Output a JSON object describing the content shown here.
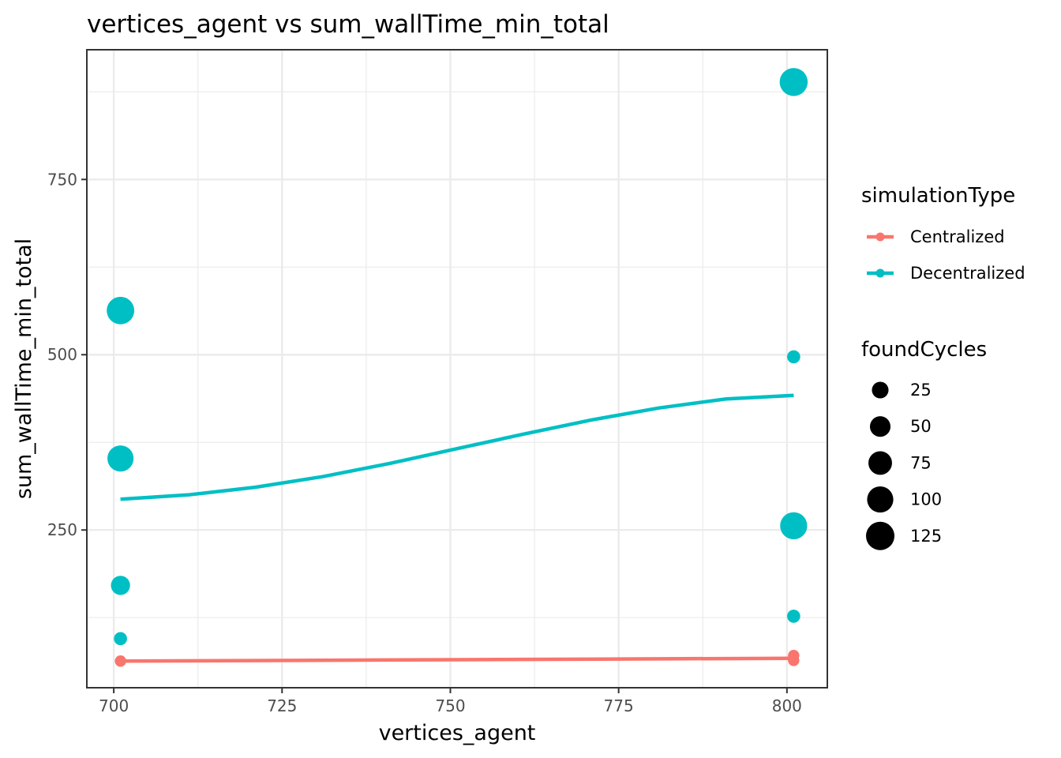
{
  "chart_data": {
    "type": "scatter",
    "title": "vertices_agent  vs  sum_wallTime_min_total",
    "xlabel": "vertices_agent",
    "ylabel": "sum_wallTime_min_total",
    "xlim": [
      696,
      806
    ],
    "ylim": [
      25,
      935
    ],
    "x_ticks": [
      700,
      725,
      750,
      775,
      800
    ],
    "x_tick_labels": [
      "700",
      "725",
      "750",
      "775",
      "800"
    ],
    "y_ticks": [
      250,
      500,
      750
    ],
    "y_tick_labels": [
      "250",
      "500",
      "750"
    ],
    "grid": true,
    "legend_position": "right",
    "color_legend": {
      "title": "simulationType",
      "entries": [
        {
          "label": "Centralized",
          "color": "#F8766D"
        },
        {
          "label": "Decentralized",
          "color": "#00BFC4"
        }
      ]
    },
    "size_legend": {
      "title": "foundCycles",
      "entries": [
        {
          "label": "25",
          "value": 25
        },
        {
          "label": "50",
          "value": 50
        },
        {
          "label": "75",
          "value": 75
        },
        {
          "label": "100",
          "value": 100
        },
        {
          "label": "125",
          "value": 125
        }
      ]
    },
    "series": [
      {
        "name": "Centralized",
        "color": "#F8766D",
        "points": [
          {
            "x": 701,
            "y": 63,
            "size": 5
          },
          {
            "x": 801,
            "y": 71,
            "size": 5
          },
          {
            "x": 801,
            "y": 64,
            "size": 5
          }
        ],
        "smooth": {
          "x": [
            701,
            751,
            801
          ],
          "y": [
            63,
            65,
            67
          ]
        }
      },
      {
        "name": "Decentralized",
        "color": "#00BFC4",
        "points": [
          {
            "x": 701,
            "y": 563,
            "size": 115
          },
          {
            "x": 701,
            "y": 352,
            "size": 100
          },
          {
            "x": 701,
            "y": 171,
            "size": 40
          },
          {
            "x": 701,
            "y": 95,
            "size": 10
          },
          {
            "x": 801,
            "y": 889,
            "size": 120
          },
          {
            "x": 801,
            "y": 497,
            "size": 10
          },
          {
            "x": 801,
            "y": 256,
            "size": 110
          },
          {
            "x": 801,
            "y": 127,
            "size": 10
          }
        ],
        "smooth": {
          "x": [
            701,
            711,
            721,
            731,
            741,
            751,
            761,
            771,
            781,
            791,
            801
          ],
          "y": [
            294,
            300,
            311,
            326,
            345,
            366,
            387,
            407,
            424,
            437,
            442
          ]
        }
      }
    ]
  }
}
